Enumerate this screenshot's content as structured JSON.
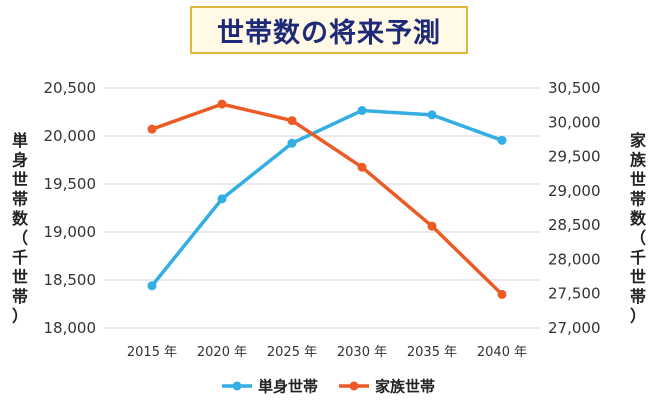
{
  "chart_data": {
    "type": "line",
    "title": "世帯数の将来予測",
    "categories": [
      "2015 年",
      "2020 年",
      "2025 年",
      "2030 年",
      "2035 年",
      "2040 年"
    ],
    "y_left": {
      "label_chars": [
        "単",
        "身",
        "世",
        "帯",
        "数",
        "（",
        "千",
        "世",
        "帯",
        "）"
      ],
      "ylim": [
        18000,
        20500
      ],
      "ticks": [
        "20,500",
        "20,000",
        "19,500",
        "19,000",
        "18,500",
        "18,000"
      ],
      "tick_values": [
        20500,
        20000,
        19500,
        19000,
        18500,
        18000
      ]
    },
    "y_right": {
      "label_chars": [
        "家",
        "族",
        "世",
        "帯",
        "数",
        "（",
        "千",
        "世",
        "帯",
        "）"
      ],
      "ylim": [
        27000,
        30500
      ],
      "ticks": [
        "30,500",
        "30,000",
        "29,500",
        "29,000",
        "28,500",
        "28,000",
        "27,500",
        "27,000"
      ],
      "tick_values": [
        30500,
        30000,
        29500,
        29000,
        28500,
        28000,
        27500,
        27000
      ]
    },
    "series": [
      {
        "name": "単身世帯",
        "axis": "left",
        "color": "#33aee3",
        "values": [
          18440,
          19345,
          19925,
          20265,
          20220,
          19955
        ]
      },
      {
        "name": "家族世帯",
        "axis": "right",
        "color": "#ec5b25",
        "values": [
          29900,
          30265,
          30025,
          29345,
          28485,
          27490
        ]
      }
    ],
    "grid": true,
    "legend_position": "bottom-center"
  }
}
